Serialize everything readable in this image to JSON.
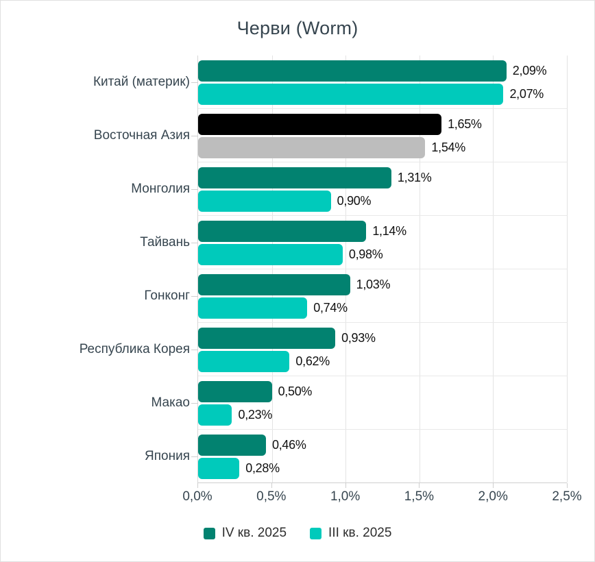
{
  "chart_data": {
    "type": "bar",
    "orientation": "horizontal",
    "title": "Черви (Worm)",
    "categories": [
      "Китай (материк)",
      "Восточная Азия",
      "Монголия",
      "Тайвань",
      "Гонконг",
      "Республика Корея",
      "Макао",
      "Япония"
    ],
    "series": [
      {
        "name": "IV кв. 2025",
        "color": "#028270",
        "values": [
          2.09,
          1.65,
          1.31,
          1.14,
          1.03,
          0.93,
          0.5,
          0.46
        ],
        "labels": [
          "2,09%",
          "1,65%",
          "1,31%",
          "1,14%",
          "1,03%",
          "0,93%",
          "0,50%",
          "0,46%"
        ]
      },
      {
        "name": "III кв. 2025",
        "color": "#00CABB",
        "values": [
          2.07,
          1.54,
          0.9,
          0.98,
          0.74,
          0.62,
          0.23,
          0.28
        ],
        "labels": [
          "2,07%",
          "1,54%",
          "0,90%",
          "0,98%",
          "0,74%",
          "0,62%",
          "0,23%",
          "0,28%"
        ]
      }
    ],
    "highlight": {
      "category": "Восточная Азия",
      "colors": [
        "#000000",
        "#BDBDBD"
      ]
    },
    "xlim": [
      0,
      2.5
    ],
    "x_ticks": [
      "0,0%",
      "0,5%",
      "1,0%",
      "1,5%",
      "2,0%",
      "2,5%"
    ],
    "grid": true,
    "legend_position": "bottom"
  }
}
